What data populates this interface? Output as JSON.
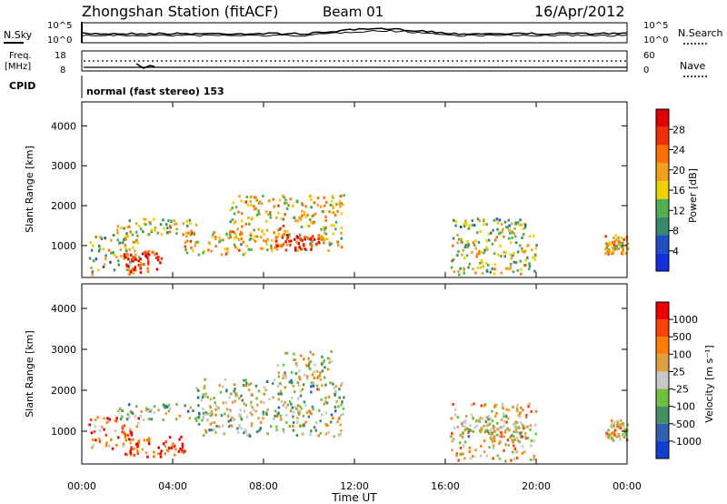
{
  "header": {
    "station_title": "Zhongshan Station (fitACF)",
    "beam": "Beam 01",
    "date": "16/Apr/2012"
  },
  "noise_panel": {
    "left_label": "N.Sky",
    "right_label": "N.Search",
    "left_ticks": [
      "10^5",
      "10^0"
    ],
    "right_ticks": [
      "10^5",
      "10^0"
    ]
  },
  "freq_panel": {
    "left_label_1": "Freq.",
    "left_label_2": "[MHz]",
    "right_label": "Nave",
    "left_ticks": [
      "18",
      "8"
    ],
    "right_ticks": [
      "60",
      "0"
    ]
  },
  "cpid": {
    "label": "CPID",
    "value": "normal (fast stereo) 153"
  },
  "colors": {
    "power_scale": [
      "#1030e0",
      "#2050c0",
      "#3a8a70",
      "#50b050",
      "#f0d000",
      "#f0a020",
      "#ff7000",
      "#f03000",
      "#e00000"
    ],
    "velocity_scale": [
      "#1040d0",
      "#3060b0",
      "#409060",
      "#70c040",
      "#c8c8c8",
      "#e0a040",
      "#ff8000",
      "#ff4000",
      "#ee0000"
    ]
  },
  "chart_data": [
    {
      "type": "heatmap",
      "name": "power",
      "ylabel": "Slant Range [km]",
      "ylim": [
        200,
        4600
      ],
      "y_ticks": [
        "4000",
        "3000",
        "2000",
        "1000"
      ],
      "colorbar_label": "Power [dB]",
      "colorbar_ticks": [
        "28",
        "24",
        "20",
        "16",
        "12",
        "8",
        "4"
      ],
      "regions": [
        {
          "t0": 0.3,
          "t1": 2.5,
          "r0": 300,
          "r1": 1300,
          "level": 0.45
        },
        {
          "t0": 1.8,
          "t1": 3.5,
          "r0": 350,
          "r1": 900,
          "level": 0.85
        },
        {
          "t0": 1.5,
          "t1": 5.0,
          "r0": 1300,
          "r1": 1700,
          "level": 0.5
        },
        {
          "t0": 4.5,
          "t1": 7.5,
          "r0": 800,
          "r1": 1400,
          "level": 0.6
        },
        {
          "t0": 6.5,
          "t1": 11.5,
          "r0": 900,
          "r1": 2300,
          "level": 0.55
        },
        {
          "t0": 8.5,
          "t1": 10.5,
          "r0": 900,
          "r1": 1300,
          "level": 0.8
        },
        {
          "t0": 16.2,
          "t1": 20.0,
          "r0": 300,
          "r1": 1300,
          "level": 0.5
        },
        {
          "t0": 16.3,
          "t1": 19.5,
          "r0": 1300,
          "r1": 1700,
          "level": 0.4
        },
        {
          "t0": 23.0,
          "t1": 24.0,
          "r0": 800,
          "r1": 1300,
          "level": 0.6
        }
      ]
    },
    {
      "type": "heatmap",
      "name": "velocity",
      "xlabel": "Time UT",
      "ylabel": "Slant Range [km]",
      "ylim": [
        200,
        4600
      ],
      "y_ticks": [
        "4000",
        "3000",
        "2000",
        "1000"
      ],
      "x_ticks": [
        "00:00",
        "04:00",
        "08:00",
        "12:00",
        "16:00",
        "20:00",
        "00:00"
      ],
      "colorbar_label": "Velocity [m s⁻¹]",
      "colorbar_ticks": [
        "1000",
        "500",
        "100",
        "25",
        "-25",
        "-100",
        "-500",
        "-1000"
      ],
      "regions": [
        {
          "t0": 0.3,
          "t1": 2.5,
          "r0": 600,
          "r1": 1400,
          "level": 0.75
        },
        {
          "t0": 1.8,
          "t1": 4.5,
          "r0": 400,
          "r1": 900,
          "level": 0.85
        },
        {
          "t0": 1.5,
          "t1": 6.0,
          "r0": 1300,
          "r1": 1700,
          "level": 0.45
        },
        {
          "t0": 5.0,
          "t1": 11.5,
          "r0": 900,
          "r1": 2300,
          "level": 0.45
        },
        {
          "t0": 8.5,
          "t1": 11.0,
          "r0": 2300,
          "r1": 3000,
          "level": 0.5
        },
        {
          "t0": 16.2,
          "t1": 20.0,
          "r0": 300,
          "r1": 1700,
          "level": 0.6
        },
        {
          "t0": 16.5,
          "t1": 19.5,
          "r0": 900,
          "r1": 1400,
          "level": 0.45
        },
        {
          "t0": 23.0,
          "t1": 24.0,
          "r0": 800,
          "r1": 1300,
          "level": 0.6
        }
      ]
    }
  ]
}
